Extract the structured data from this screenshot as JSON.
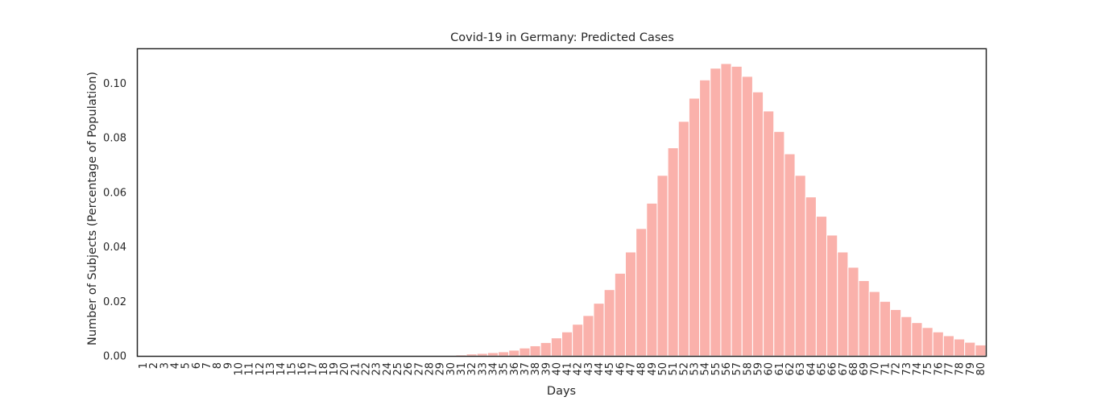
{
  "chart_data": {
    "type": "bar",
    "title": "Covid-19 in Germany: Predicted Cases",
    "xlabel": "Days",
    "ylabel": "Number of Subjects (Percentage of Population)",
    "ylim": [
      0,
      0.1125
    ],
    "yticks": [
      "0.00",
      "0.02",
      "0.04",
      "0.06",
      "0.08",
      "0.10"
    ],
    "ytick_values": [
      0,
      0.02,
      0.04,
      0.06,
      0.08,
      0.1
    ],
    "grid": false,
    "bar_color": "#fab1ab",
    "categories": [
      "1",
      "2",
      "3",
      "4",
      "5",
      "6",
      "7",
      "8",
      "9",
      "10",
      "11",
      "12",
      "13",
      "14",
      "15",
      "16",
      "17",
      "18",
      "19",
      "20",
      "21",
      "22",
      "23",
      "24",
      "25",
      "26",
      "27",
      "28",
      "29",
      "30",
      "31",
      "32",
      "33",
      "34",
      "35",
      "36",
      "37",
      "38",
      "39",
      "40",
      "41",
      "42",
      "43",
      "44",
      "45",
      "46",
      "47",
      "48",
      "49",
      "50",
      "51",
      "52",
      "53",
      "54",
      "55",
      "56",
      "57",
      "58",
      "59",
      "60",
      "61",
      "62",
      "63",
      "64",
      "65",
      "66",
      "67",
      "68",
      "69",
      "70",
      "71",
      "72",
      "73",
      "74",
      "75",
      "76",
      "77",
      "78",
      "79",
      "80"
    ],
    "values": [
      0,
      0,
      0,
      0,
      0,
      0,
      0,
      0,
      0,
      0,
      0,
      0,
      0,
      0,
      0,
      0,
      0,
      0,
      0,
      0,
      0,
      0,
      0,
      0,
      0,
      0,
      0,
      0,
      0.0001,
      0.0002,
      0.0004,
      0.0007,
      0.0009,
      0.0012,
      0.0015,
      0.0021,
      0.0029,
      0.0037,
      0.0049,
      0.0066,
      0.0088,
      0.0116,
      0.0148,
      0.0193,
      0.0243,
      0.0303,
      0.0381,
      0.0467,
      0.056,
      0.0662,
      0.0763,
      0.086,
      0.0945,
      0.1012,
      0.1055,
      0.1072,
      0.1062,
      0.1025,
      0.0968,
      0.0898,
      0.0823,
      0.0741,
      0.0662,
      0.0583,
      0.0512,
      0.0443,
      0.0381,
      0.0325,
      0.0276,
      0.0236,
      0.02,
      0.017,
      0.0144,
      0.0122,
      0.0104,
      0.0088,
      0.0074,
      0.0062,
      0.005,
      0.004
    ]
  }
}
